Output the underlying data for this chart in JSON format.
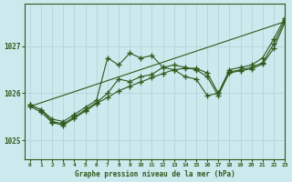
{
  "background_color": "#cce9ed",
  "grid_color": "#b0d0d5",
  "line_color": "#2d5a1b",
  "title": "Graphe pression niveau de la mer (hPa)",
  "xlim": [
    -0.5,
    23
  ],
  "ylim": [
    1024.6,
    1027.9
  ],
  "yticks": [
    1025,
    1026,
    1027
  ],
  "xticks": [
    0,
    1,
    2,
    3,
    4,
    5,
    6,
    7,
    8,
    9,
    10,
    11,
    12,
    13,
    14,
    15,
    16,
    17,
    18,
    19,
    20,
    21,
    22,
    23
  ],
  "series1_x": [
    0,
    1,
    2,
    3,
    4,
    5,
    6,
    7,
    8,
    9,
    10,
    11,
    12,
    13,
    14,
    15,
    16,
    17,
    18,
    19,
    20,
    21,
    22,
    23
  ],
  "series1": [
    1025.75,
    1025.65,
    1025.45,
    1025.4,
    1025.55,
    1025.7,
    1025.85,
    1026.75,
    1026.6,
    1026.85,
    1026.75,
    1026.8,
    1026.55,
    1026.5,
    1026.35,
    1026.3,
    1025.95,
    1026.0,
    1026.5,
    1026.55,
    1026.6,
    1026.75,
    1027.15,
    1027.6
  ],
  "series2_x": [
    0,
    1,
    2,
    3,
    4,
    5,
    6,
    7,
    8,
    9,
    10,
    11,
    12,
    13,
    14,
    15,
    16,
    17,
    18,
    19,
    20,
    21,
    22,
    23
  ],
  "series2": [
    1025.75,
    1025.65,
    1025.4,
    1025.35,
    1025.5,
    1025.65,
    1025.8,
    1026.0,
    1026.3,
    1026.25,
    1026.35,
    1026.4,
    1026.55,
    1026.6,
    1026.55,
    1026.5,
    1026.35,
    1025.95,
    1026.45,
    1026.5,
    1026.55,
    1026.65,
    1027.05,
    1027.55
  ],
  "series3_x": [
    0,
    1,
    2,
    3,
    4,
    5,
    6,
    7,
    8,
    9,
    10,
    11,
    12,
    13,
    14,
    15,
    16,
    17,
    18,
    19,
    20,
    21,
    22,
    23
  ],
  "series3": [
    1025.72,
    1025.6,
    1025.38,
    1025.32,
    1025.47,
    1025.62,
    1025.78,
    1025.91,
    1026.05,
    1026.15,
    1026.24,
    1026.33,
    1026.42,
    1026.5,
    1026.53,
    1026.53,
    1026.43,
    1026.0,
    1026.43,
    1026.48,
    1026.52,
    1026.62,
    1026.95,
    1027.5
  ],
  "series4_x": [
    0,
    23
  ],
  "series4": [
    1025.72,
    1027.52
  ]
}
